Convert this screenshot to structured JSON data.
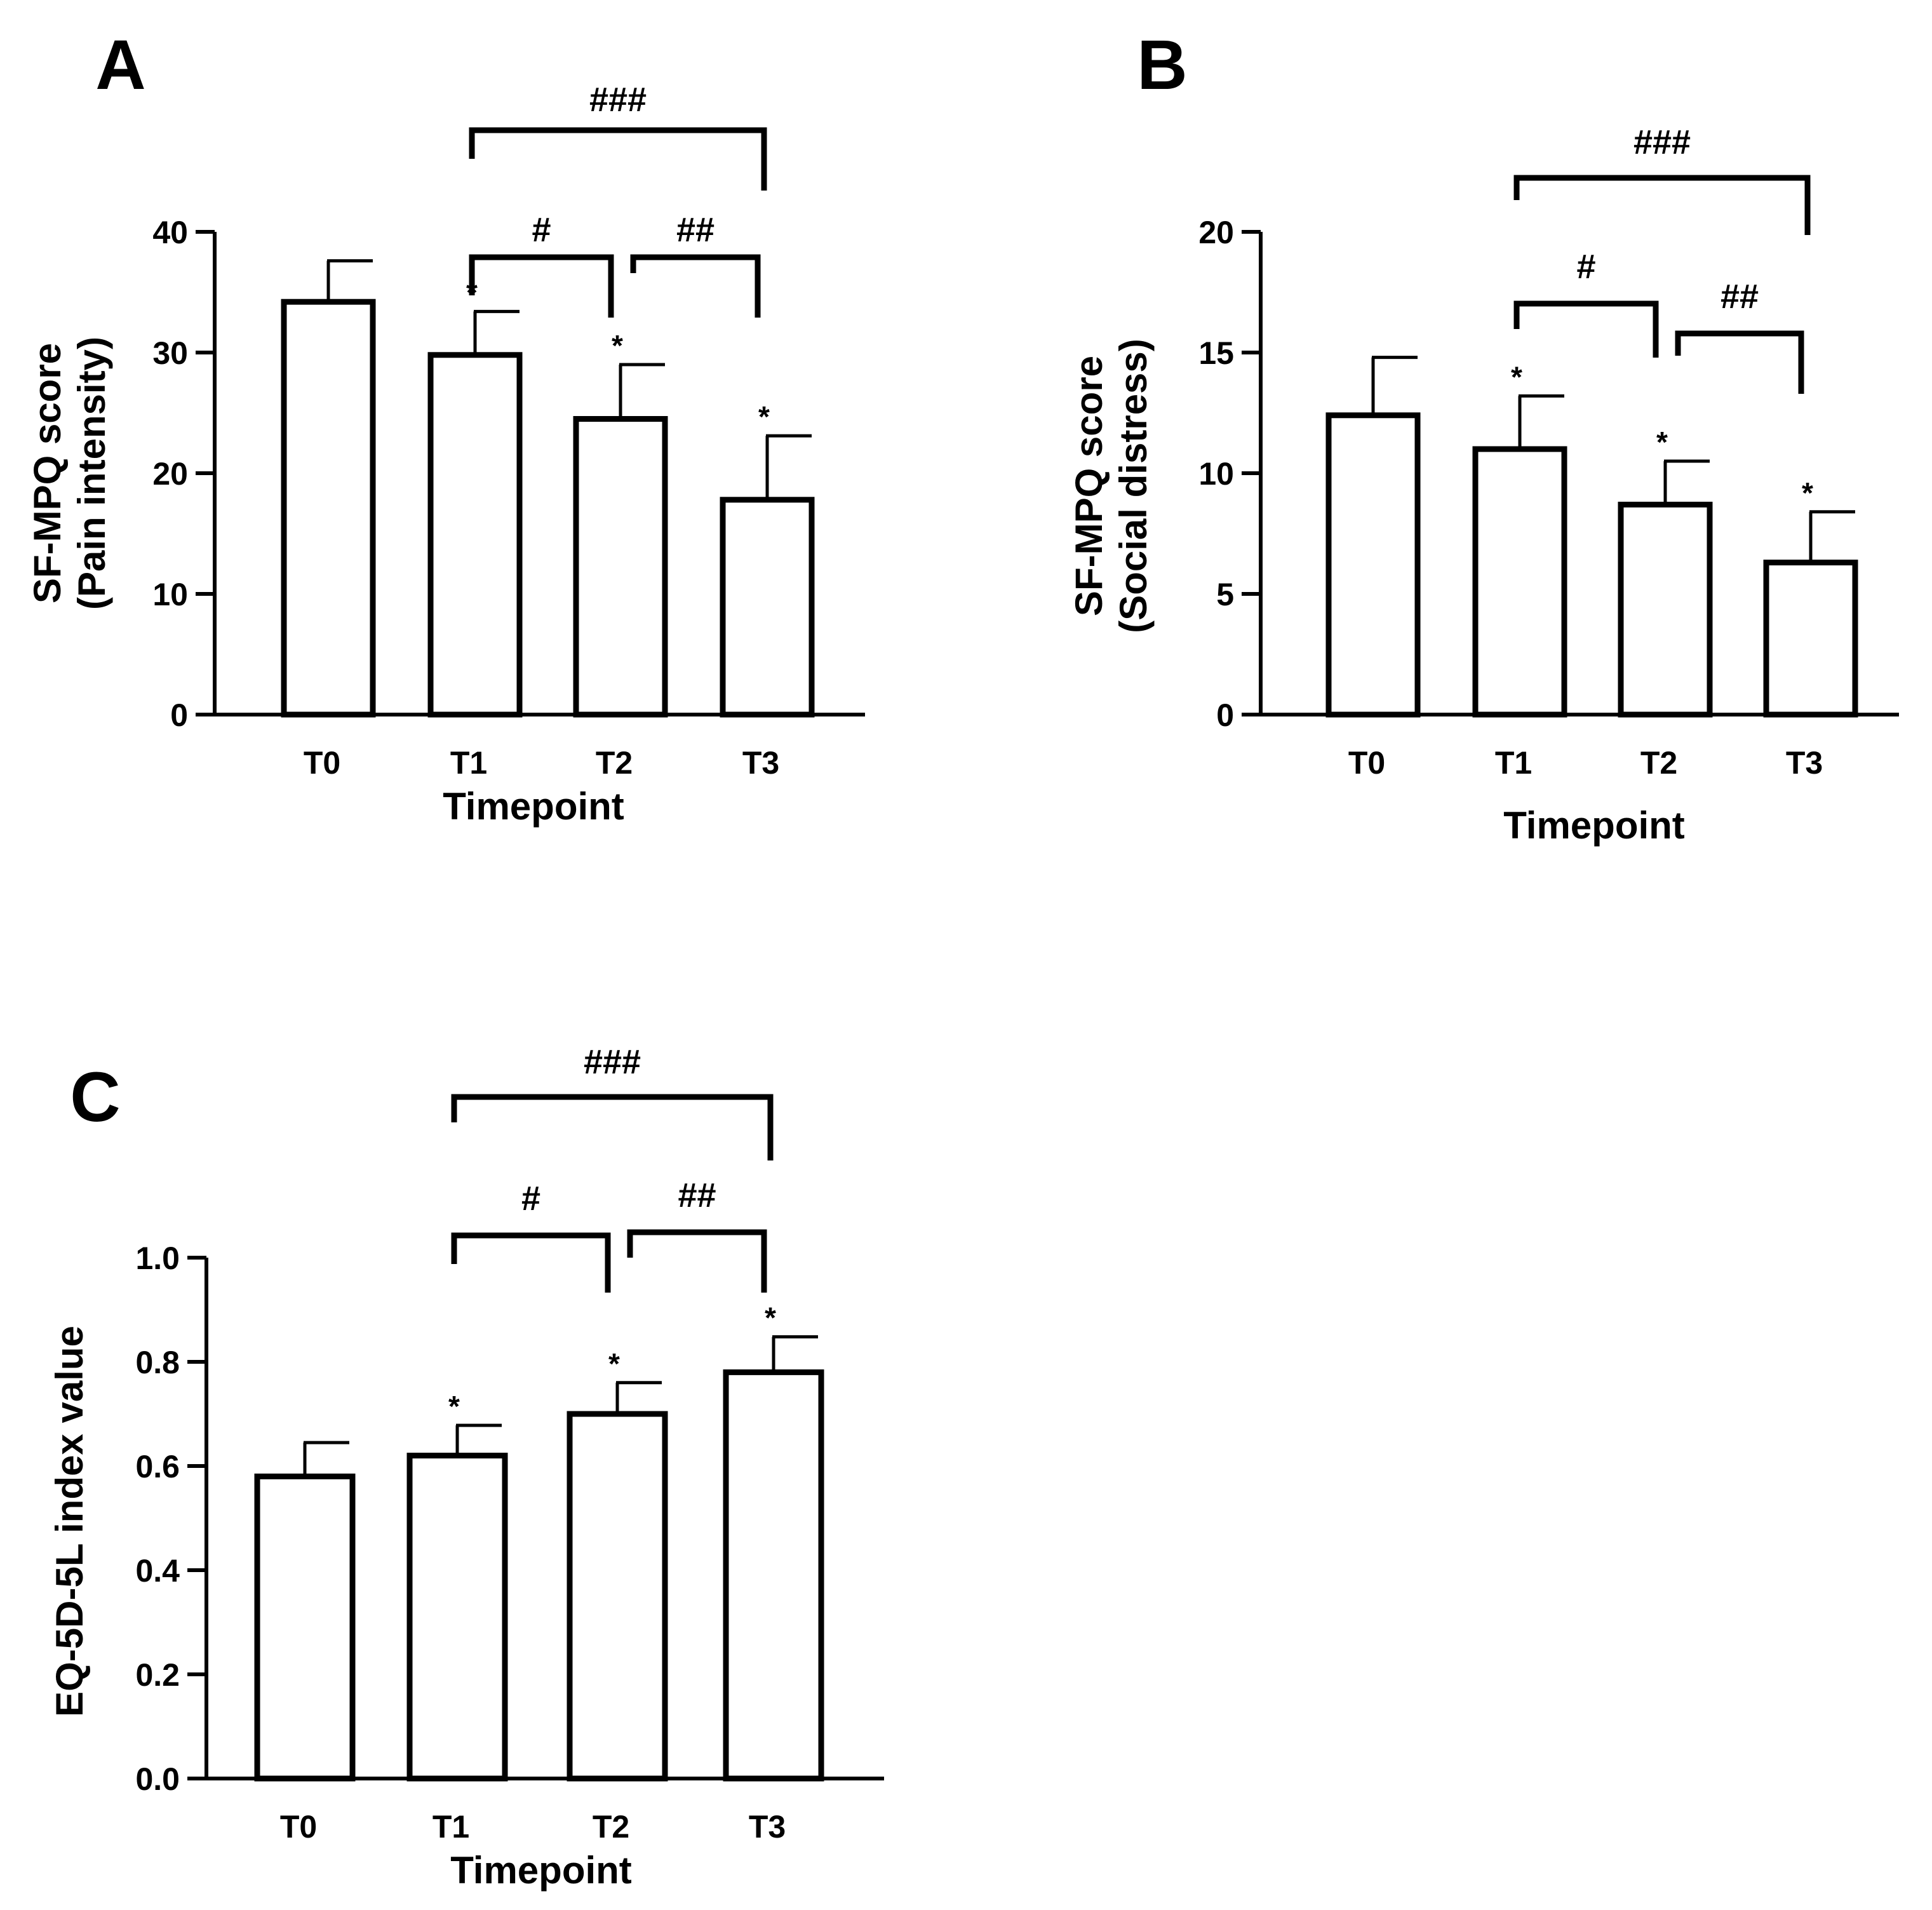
{
  "chart_data": [
    {
      "panel": "A",
      "type": "bar",
      "categories": [
        "T0",
        "T1",
        "T2",
        "T3"
      ],
      "values": [
        34.2,
        29.8,
        24.5,
        17.8
      ],
      "errors": [
        3.4,
        3.6,
        4.5,
        5.3
      ],
      "significance": [
        "",
        "*",
        "*",
        "*"
      ],
      "xlabel": "Timepoint",
      "ylabel": [
        "SF-MPQ score",
        "(Pain intensity)"
      ],
      "ylim": [
        0,
        40
      ],
      "yticks": [
        "0",
        "10",
        "20",
        "30",
        "40"
      ],
      "brackets": [
        {
          "from": "T1",
          "to": "T2",
          "label": "#"
        },
        {
          "from": "T2",
          "to": "T3",
          "label": "##"
        },
        {
          "from": "T1",
          "to": "T3",
          "label": "###"
        }
      ]
    },
    {
      "panel": "B",
      "type": "bar",
      "categories": [
        "T0",
        "T1",
        "T2",
        "T3"
      ],
      "values": [
        12.4,
        11.0,
        8.7,
        6.3
      ],
      "errors": [
        2.4,
        2.2,
        1.8,
        2.1
      ],
      "significance": [
        "",
        "*",
        "*",
        "*"
      ],
      "xlabel": "Timepoint",
      "ylabel": [
        "SF-MPQ score",
        "(Social distress)"
      ],
      "ylim": [
        0,
        20
      ],
      "yticks": [
        "0",
        "5",
        "10",
        "15",
        "20"
      ],
      "brackets": [
        {
          "from": "T1",
          "to": "T2",
          "label": "#"
        },
        {
          "from": "T2",
          "to": "T3",
          "label": "##"
        },
        {
          "from": "T1",
          "to": "T3",
          "label": "###"
        }
      ]
    },
    {
      "panel": "C",
      "type": "bar",
      "categories": [
        "T0",
        "T1",
        "T2",
        "T3"
      ],
      "values": [
        0.58,
        0.62,
        0.7,
        0.78
      ],
      "errors": [
        0.065,
        0.058,
        0.06,
        0.068
      ],
      "significance": [
        "",
        "*",
        "*",
        "*"
      ],
      "xlabel": "Timepoint",
      "ylabel": [
        "EQ-5D-5L index value"
      ],
      "ylim": [
        0,
        1.0
      ],
      "yticks": [
        "0.0",
        "0.2",
        "0.4",
        "0.6",
        "0.8",
        "1.0"
      ],
      "brackets": [
        {
          "from": "T1",
          "to": "T2",
          "label": "#"
        },
        {
          "from": "T2",
          "to": "T3",
          "label": "##"
        },
        {
          "from": "T1",
          "to": "T3",
          "label": "###"
        }
      ]
    }
  ]
}
